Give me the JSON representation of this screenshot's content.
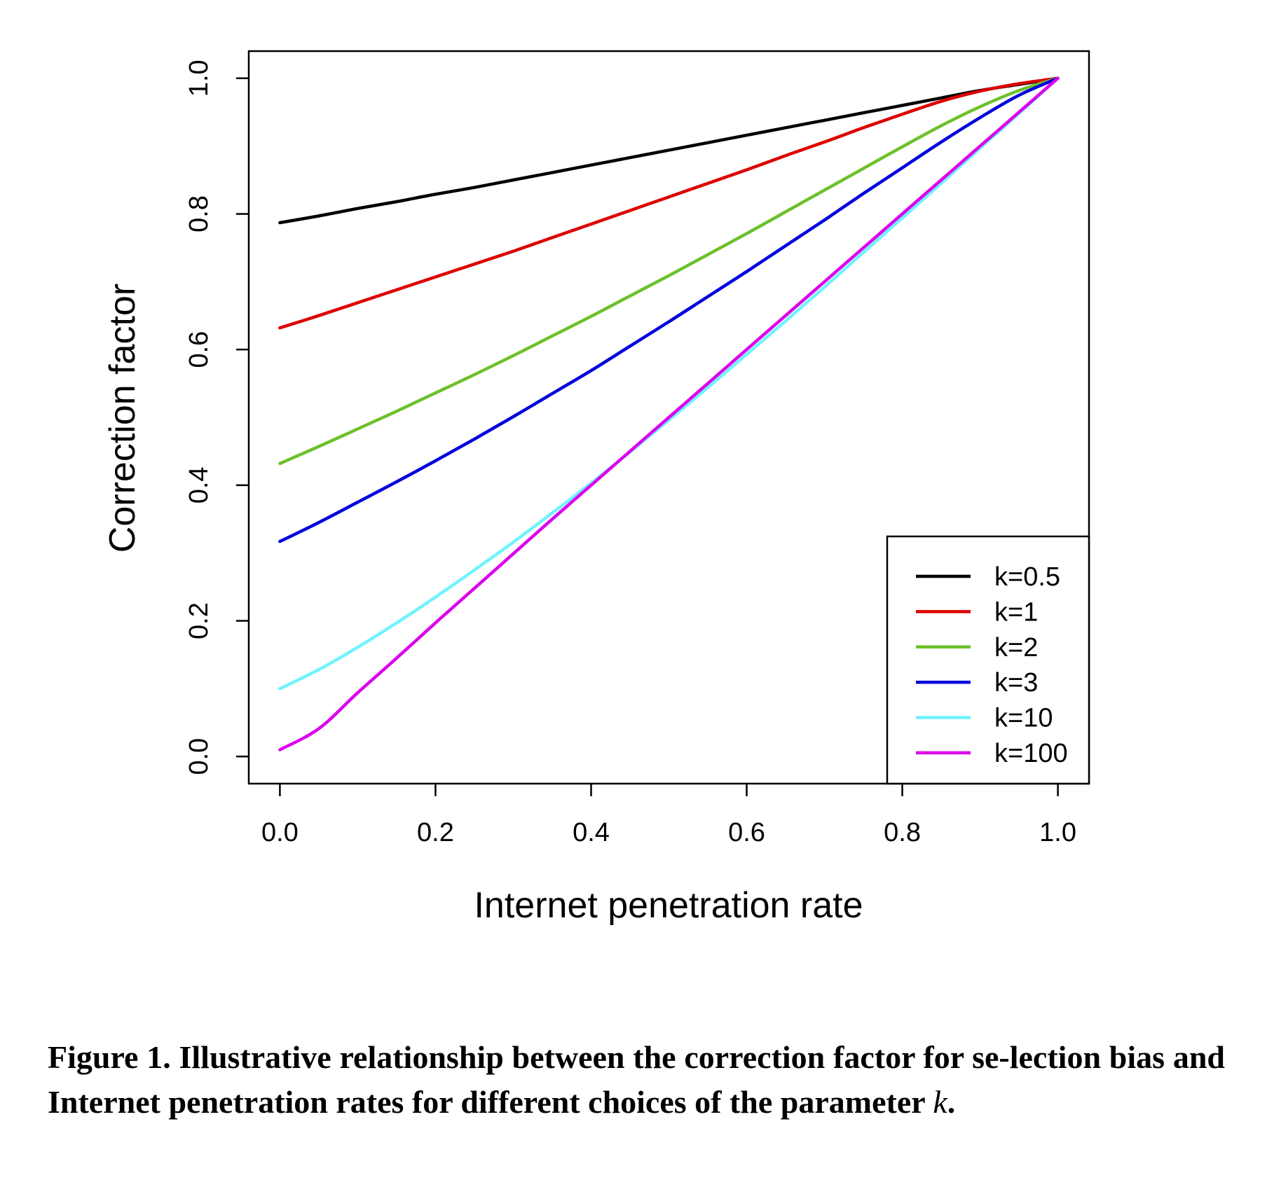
{
  "caption": {
    "label": "Figure 1.",
    "text": "Illustrative relationship between the correction factor for se-lection bias and Internet penetration rates for different choices of the parameter",
    "math_symbol": "k",
    "end": "."
  },
  "chart_data": {
    "type": "line",
    "title": "",
    "xlabel": "Internet penetration rate",
    "ylabel": "Correction factor",
    "xlim": [
      -0.04,
      1.04
    ],
    "ylim": [
      -0.04,
      1.04
    ],
    "xticks": [
      0.0,
      0.2,
      0.4,
      0.6,
      0.8,
      1.0
    ],
    "xtick_labels": [
      "0.0",
      "0.2",
      "0.4",
      "0.6",
      "0.8",
      "1.0"
    ],
    "yticks": [
      0.0,
      0.2,
      0.4,
      0.6,
      0.8,
      1.0
    ],
    "ytick_labels": [
      "0.0",
      "0.2",
      "0.4",
      "0.6",
      "0.8",
      "1.0"
    ],
    "grid": false,
    "legend_position": "bottom-right",
    "x": [
      0.0,
      0.05,
      0.1,
      0.15,
      0.2,
      0.25,
      0.3,
      0.35,
      0.4,
      0.45,
      0.5,
      0.55,
      0.6,
      0.65,
      0.7,
      0.75,
      0.8,
      0.85,
      0.9,
      0.95,
      1.0
    ],
    "series": [
      {
        "name": "k=0.5",
        "color": "#000000",
        "values": [
          0.787,
          0.797,
          0.808,
          0.818,
          0.829,
          0.839,
          0.85,
          0.861,
          0.872,
          0.883,
          0.894,
          0.905,
          0.916,
          0.927,
          0.938,
          0.949,
          0.96,
          0.971,
          0.982,
          0.991,
          1.0
        ]
      },
      {
        "name": "k=1",
        "color": "#dd0000",
        "values": [
          0.632,
          0.65,
          0.669,
          0.688,
          0.707,
          0.726,
          0.745,
          0.765,
          0.785,
          0.805,
          0.825,
          0.845,
          0.865,
          0.886,
          0.906,
          0.927,
          0.947,
          0.966,
          0.981,
          0.992,
          1.0
        ]
      },
      {
        "name": "k=2",
        "color": "#6cc12b",
        "values": [
          0.432,
          0.457,
          0.483,
          0.509,
          0.536,
          0.563,
          0.591,
          0.62,
          0.649,
          0.679,
          0.709,
          0.74,
          0.771,
          0.803,
          0.835,
          0.867,
          0.899,
          0.93,
          0.958,
          0.982,
          1.0
        ]
      },
      {
        "name": "k=3",
        "color": "#0000dd",
        "values": [
          0.317,
          0.345,
          0.375,
          0.405,
          0.436,
          0.468,
          0.501,
          0.535,
          0.569,
          0.605,
          0.641,
          0.678,
          0.715,
          0.753,
          0.791,
          0.83,
          0.868,
          0.906,
          0.942,
          0.975,
          1.0
        ]
      },
      {
        "name": "k=10",
        "color": "#6ff3ff",
        "values": [
          0.1,
          0.128,
          0.161,
          0.197,
          0.235,
          0.275,
          0.316,
          0.359,
          0.403,
          0.449,
          0.496,
          0.544,
          0.593,
          0.642,
          0.692,
          0.743,
          0.794,
          0.845,
          0.897,
          0.948,
          1.0
        ]
      },
      {
        "name": "k=100",
        "color": "#dd00ee",
        "values": [
          0.01,
          0.041,
          0.094,
          0.145,
          0.197,
          0.248,
          0.299,
          0.35,
          0.4,
          0.45,
          0.5,
          0.55,
          0.6,
          0.65,
          0.7,
          0.75,
          0.8,
          0.85,
          0.9,
          0.95,
          1.0
        ]
      }
    ]
  }
}
